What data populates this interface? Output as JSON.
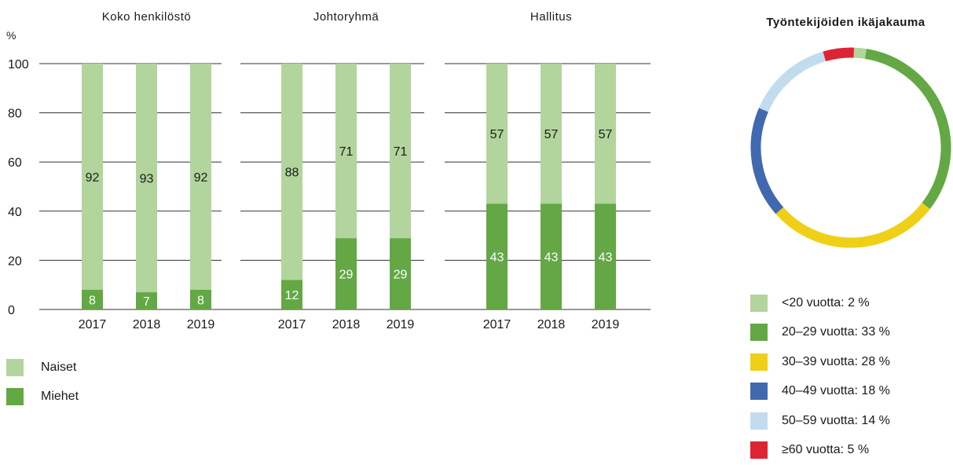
{
  "chart_data": [
    {
      "type": "bar",
      "stacked": true,
      "ylabel": "%",
      "ylim": [
        0,
        100
      ],
      "yticks": [
        0,
        20,
        40,
        60,
        80,
        100
      ],
      "grid": true,
      "groups": [
        {
          "title": "Koko henkilöstö",
          "categories": [
            "2017",
            "2018",
            "2019"
          ],
          "naiset": [
            92,
            93,
            92
          ],
          "miehet": [
            8,
            7,
            8
          ]
        },
        {
          "title": "Johtoryhmä",
          "categories": [
            "2017",
            "2018",
            "2019"
          ],
          "naiset": [
            88,
            71,
            71
          ],
          "miehet": [
            12,
            29,
            29
          ]
        },
        {
          "title": "Hallitus",
          "categories": [
            "2017",
            "2018",
            "2019"
          ],
          "naiset": [
            57,
            57,
            57
          ],
          "miehet": [
            43,
            43,
            43
          ]
        }
      ],
      "series": [
        {
          "name": "Naiset",
          "color": "#b2d49d"
        },
        {
          "name": "Miehet",
          "color": "#63a844"
        }
      ],
      "legend_placement": "bottom-left"
    },
    {
      "type": "pie",
      "donut": true,
      "title": "Työntekijöiden ikäjakauma",
      "labels": [
        "<20 vuotta",
        "20–29 vuotta",
        "30–39 vuotta",
        "40–49 vuotta",
        "50–59 vuotta",
        "≥60 vuotta"
      ],
      "values": [
        2,
        33,
        28,
        18,
        14,
        5
      ],
      "legend_labels": [
        "<20 vuotta: 2 %",
        "20–29 vuotta: 33 %",
        "30–39 vuotta: 28 %",
        "40–49 vuotta: 18 %",
        "50–59 vuotta: 14 %",
        "≥60 vuotta: 5 %"
      ],
      "colors": [
        "#b2d49d",
        "#63a844",
        "#f0d016",
        "#4169b0",
        "#c2dcef",
        "#dd2433"
      ],
      "legend_placement": "bottom"
    }
  ]
}
